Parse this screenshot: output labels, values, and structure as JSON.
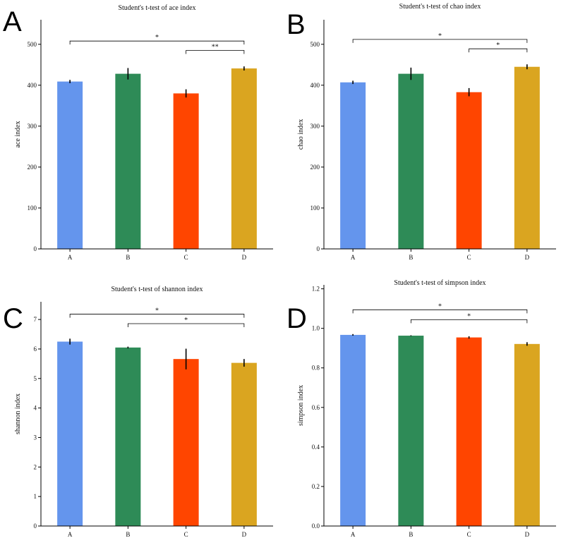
{
  "colors": {
    "A": "#6495ED",
    "B": "#2E8B57",
    "C": "#FF4500",
    "D": "#DAA520",
    "axis": "#000000",
    "error_bar": "#000000"
  },
  "chart_data": [
    {
      "panel": "A",
      "type": "bar",
      "title": "Student's t-test of ace index",
      "xlabel": "",
      "ylabel": "ace index",
      "categories": [
        "A",
        "B",
        "C",
        "D"
      ],
      "values": [
        409,
        428,
        380,
        441
      ],
      "errors": [
        4,
        14,
        10,
        5
      ],
      "ylim": [
        0,
        560
      ],
      "yticks": [
        "0",
        "100",
        "200",
        "300",
        "400",
        "500"
      ],
      "significance": [
        {
          "from": "A",
          "to": "D",
          "label": "*",
          "y": 508
        },
        {
          "from": "C",
          "to": "D",
          "label": "**",
          "y": 485
        }
      ]
    },
    {
      "panel": "B",
      "type": "bar",
      "title": "Student's t-test of chao index",
      "xlabel": "",
      "ylabel": "chao index",
      "categories": [
        "A",
        "B",
        "C",
        "D"
      ],
      "values": [
        407,
        428,
        383,
        445
      ],
      "errors": [
        4,
        15,
        10,
        6
      ],
      "ylim": [
        0,
        560
      ],
      "yticks": [
        "0",
        "100",
        "200",
        "300",
        "400",
        "500"
      ],
      "significance": [
        {
          "from": "A",
          "to": "D",
          "label": "*",
          "y": 512
        },
        {
          "from": "C",
          "to": "D",
          "label": "*",
          "y": 489
        }
      ]
    },
    {
      "panel": "C",
      "type": "bar",
      "title": "Student's t-test of shannon index",
      "xlabel": "",
      "ylabel": "shannon index",
      "categories": [
        "A",
        "B",
        "C",
        "D"
      ],
      "values": [
        6.25,
        6.05,
        5.66,
        5.53
      ],
      "errors": [
        0.1,
        0.03,
        0.35,
        0.13
      ],
      "ylim": [
        0,
        7.6
      ],
      "yticks": [
        "0",
        "1",
        "2",
        "3",
        "4",
        "5",
        "6",
        "7"
      ],
      "significance": [
        {
          "from": "A",
          "to": "D",
          "label": "*",
          "y": 7.18
        },
        {
          "from": "B",
          "to": "D",
          "label": "*",
          "y": 6.86
        }
      ]
    },
    {
      "panel": "D",
      "type": "bar",
      "title": "Student's t-test of simpson index",
      "xlabel": "",
      "ylabel": "simpson index",
      "categories": [
        "A",
        "B",
        "C",
        "D"
      ],
      "values": [
        0.967,
        0.963,
        0.954,
        0.921
      ],
      "errors": [
        0.004,
        0.002,
        0.006,
        0.009
      ],
      "ylim": [
        0,
        1.22
      ],
      "yticks": [
        "0.0",
        "0.2",
        "0.4",
        "0.6",
        "0.8",
        "1.0",
        "1.2"
      ],
      "significance": [
        {
          "from": "A",
          "to": "D",
          "label": "*",
          "y": 1.094
        },
        {
          "from": "B",
          "to": "D",
          "label": "*",
          "y": 1.044
        }
      ]
    }
  ]
}
